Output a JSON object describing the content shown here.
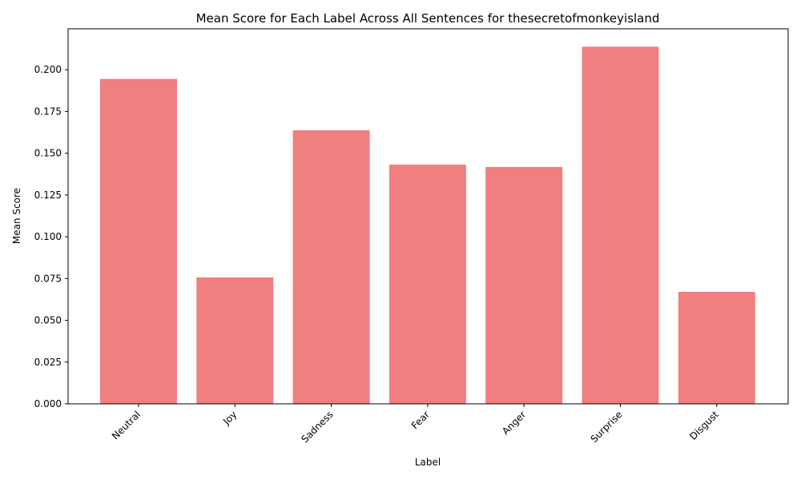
{
  "chart_data": {
    "type": "bar",
    "title": "Mean Score for Each Label Across All Sentences for thesecretofmonkeyisland",
    "xlabel": "Label",
    "ylabel": "Mean Score",
    "categories": [
      "Neutral",
      "Joy",
      "Sadness",
      "Fear",
      "Anger",
      "Surprise",
      "Disgust"
    ],
    "values": [
      0.1945,
      0.0757,
      0.1637,
      0.1432,
      0.1418,
      0.2138,
      0.067
    ],
    "ylim": [
      0,
      0.2245
    ],
    "yticks": [
      0.0,
      0.025,
      0.05,
      0.075,
      0.1,
      0.125,
      0.15,
      0.175,
      0.2
    ],
    "ytick_labels": [
      "0.000",
      "0.025",
      "0.050",
      "0.075",
      "0.100",
      "0.125",
      "0.150",
      "0.175",
      "0.200"
    ],
    "grid": false,
    "legend": "none",
    "bar_color": "#f08080",
    "xtick_rotation": 45
  }
}
